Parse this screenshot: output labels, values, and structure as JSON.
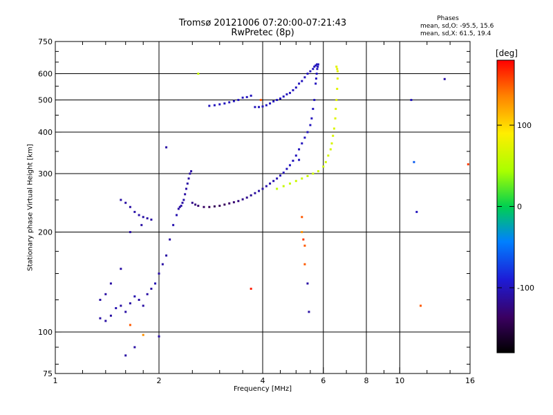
{
  "header": {
    "title_line1": "Tromsø 20121006 07:20:00-07:21:43",
    "title_line2": "RwPretec (8p)"
  },
  "phases": {
    "heading": "Phases",
    "line_o": "mean, sd,O: -95.5, 15.6",
    "line_x": "mean, sd,X:  61.5, 19.4"
  },
  "colorbar": {
    "unit": "[deg]",
    "range": [
      -180,
      180
    ],
    "ticks": [
      100,
      0,
      -100
    ],
    "tick_labels": [
      "100",
      "0",
      "-100"
    ]
  },
  "chart_data": {
    "type": "scatter",
    "title": "Tromsø 20121006 07:20:00-07:21:43",
    "subtitle": "RwPretec (8p)",
    "xlabel": "Frequency [MHz]",
    "ylabel": "Stationary phase Virtual Height [km]",
    "x_scale": "log",
    "y_scale": "log",
    "xlim": [
      1,
      16
    ],
    "ylim": [
      75,
      750
    ],
    "x_ticks": [
      1,
      2,
      4,
      6,
      8,
      10,
      16
    ],
    "x_tick_labels": [
      "1",
      "2",
      "4",
      "6",
      "8",
      "10",
      "16"
    ],
    "y_ticks": [
      75,
      100,
      200,
      300,
      400,
      500,
      600,
      750
    ],
    "y_tick_labels": [
      "75",
      "100",
      "200",
      "300",
      "400",
      "500",
      "600",
      "750"
    ],
    "grid": true,
    "color_variable": "phase [deg]",
    "series": [
      {
        "x": [
          1.35,
          1.4,
          1.45,
          1.5,
          1.55,
          1.6,
          1.65,
          1.7,
          1.75,
          1.8,
          1.85,
          1.9,
          1.95,
          2.0,
          2.05,
          2.1,
          2.15,
          2.2,
          2.25,
          2.28,
          2.3,
          2.32,
          2.34,
          2.36,
          2.38,
          2.4,
          2.42,
          2.44,
          2.46,
          2.48,
          2.5,
          2.55,
          2.6,
          2.7,
          2.8,
          2.9,
          3.0,
          3.1,
          3.2,
          3.3,
          3.4,
          3.5,
          3.6,
          3.7,
          3.8,
          3.9,
          4.0,
          4.1,
          4.2,
          4.3,
          4.4,
          4.5,
          4.6,
          4.7,
          4.8,
          4.9,
          5.0,
          5.1,
          5.2,
          5.3,
          5.4,
          5.5,
          5.55,
          5.6,
          5.65,
          5.7,
          5.72,
          5.74,
          5.76,
          5.78,
          5.8,
          5.75,
          5.7,
          5.65,
          5.6,
          5.5,
          5.4,
          5.3,
          5.2,
          5.1,
          5.0,
          4.9,
          4.8,
          4.7,
          4.6,
          4.5,
          4.4,
          4.3,
          4.2,
          4.1,
          4.0,
          3.9,
          3.8,
          3.7,
          3.6,
          3.5,
          3.4,
          3.3,
          3.2,
          3.1,
          3.0,
          2.9,
          2.8
        ],
        "y": [
          110,
          108,
          112,
          118,
          120,
          115,
          122,
          128,
          125,
          120,
          130,
          135,
          140,
          150,
          160,
          170,
          190,
          210,
          225,
          235,
          238,
          240,
          245,
          250,
          260,
          270,
          280,
          290,
          300,
          305,
          245,
          242,
          240,
          238,
          238,
          239,
          240,
          242,
          244,
          246,
          248,
          251,
          254,
          258,
          262,
          266,
          270,
          275,
          280,
          285,
          290,
          296,
          302,
          310,
          318,
          328,
          340,
          355,
          370,
          385,
          400,
          420,
          440,
          470,
          500,
          560,
          580,
          600,
          620,
          630,
          640,
          640,
          635,
          630,
          620,
          610,
          600,
          585,
          570,
          560,
          545,
          535,
          525,
          520,
          512,
          505,
          500,
          495,
          488,
          482,
          478,
          476,
          476,
          515,
          510,
          508,
          500,
          496,
          492,
          488,
          485,
          482,
          480
        ],
        "phase": [
          -110,
          -110,
          -110,
          -105,
          -110,
          -110,
          -110,
          -105,
          -110,
          -110,
          -110,
          -110,
          -105,
          -110,
          -110,
          -110,
          -110,
          -105,
          -105,
          -110,
          -110,
          -110,
          -110,
          -110,
          -110,
          -110,
          -110,
          -110,
          -110,
          -110,
          -120,
          -125,
          -130,
          -135,
          -140,
          -140,
          -140,
          -138,
          -135,
          -130,
          -125,
          -120,
          -118,
          -115,
          -112,
          -110,
          -110,
          -108,
          -106,
          -105,
          -104,
          -103,
          -102,
          -100,
          -100,
          -100,
          -100,
          -100,
          -100,
          -100,
          -100,
          -100,
          -100,
          -100,
          -100,
          -100,
          -100,
          -100,
          -100,
          -100,
          -100,
          -100,
          -100,
          -100,
          -100,
          -100,
          -100,
          -100,
          -100,
          -100,
          -100,
          -100,
          -100,
          -100,
          -100,
          -100,
          -100,
          -100,
          -100,
          -100,
          -100,
          -100,
          -100,
          -100,
          -100,
          -100,
          -100,
          -100,
          -100,
          -100,
          -100,
          -100,
          -100
        ]
      },
      {
        "x": [
          4.4,
          4.6,
          4.8,
          5.0,
          5.2,
          5.4,
          5.6,
          5.8,
          6.0,
          6.1,
          6.2,
          6.3,
          6.35,
          6.4,
          6.45,
          6.5,
          6.52,
          6.55,
          6.58,
          6.6,
          6.6,
          6.58,
          6.55
        ],
        "y": [
          270,
          275,
          280,
          285,
          290,
          295,
          300,
          305,
          315,
          325,
          340,
          355,
          370,
          390,
          410,
          440,
          470,
          500,
          540,
          580,
          610,
          620,
          630
        ],
        "phase": [
          55,
          60,
          60,
          62,
          60,
          60,
          62,
          64,
          65,
          65,
          66,
          68,
          68,
          70,
          70,
          72,
          72,
          74,
          74,
          75,
          76,
          76,
          75
        ]
      },
      {
        "x": [
          1.55,
          1.6,
          1.65,
          1.7,
          1.75,
          1.8,
          1.85,
          1.9,
          1.78,
          1.65,
          1.55,
          1.45,
          1.4,
          1.35
        ],
        "y": [
          250,
          245,
          238,
          230,
          225,
          222,
          220,
          218,
          210,
          200,
          155,
          140,
          130,
          125
        ],
        "phase": [
          -110,
          -110,
          -110,
          -108,
          -108,
          -110,
          -110,
          -110,
          -110,
          -110,
          -110,
          -110,
          -110,
          -110
        ]
      },
      {
        "x": [
          2.1,
          2.6,
          3.7,
          3.95,
          5.1,
          5.2,
          5.2,
          5.25,
          5.3,
          5.3,
          5.4,
          5.45,
          10.8,
          11.0,
          11.2,
          11.5,
          13.5,
          15.8,
          1.6,
          1.7,
          1.8,
          2.0,
          1.65
        ],
        "y": [
          360,
          600,
          135,
          500,
          330,
          222,
          200,
          190,
          182,
          160,
          140,
          115,
          500,
          325,
          230,
          120,
          578,
          320,
          85,
          90,
          98,
          97,
          105
        ],
        "phase": [
          -110,
          60,
          170,
          150,
          -100,
          150,
          130,
          160,
          150,
          150,
          -110,
          -110,
          -100,
          -60,
          -100,
          150,
          -110,
          160,
          -110,
          -110,
          130,
          -110,
          150
        ]
      }
    ]
  }
}
